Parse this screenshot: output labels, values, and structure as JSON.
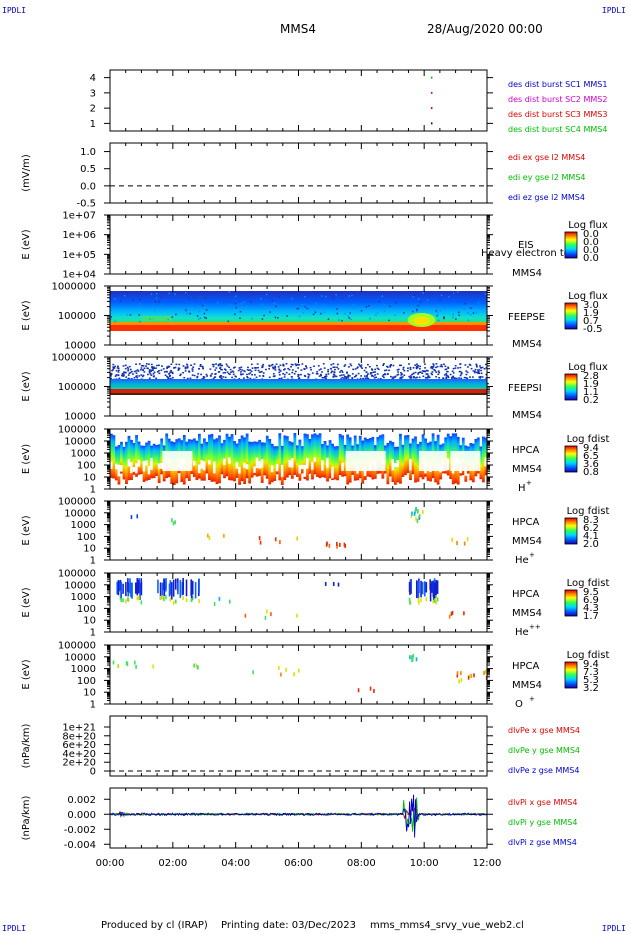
{
  "corner_tl": "IPDLI",
  "corner_tr": "IPDLI",
  "corner_bl": "IPDLI",
  "corner_br": "IPDLI",
  "spacecraft": "MMS4",
  "date": "28/Aug/2020 00:00",
  "footer": {
    "producer": "Produced by cl (IRAP)",
    "printing": "Printing date: 03/Dec/2023",
    "filename": "mms_mms4_srvy_vue_web2.cl"
  },
  "time_ticks": [
    "00:00",
    "02:00",
    "04:00",
    "06:00",
    "08:00",
    "10:00",
    "12:00"
  ],
  "panel_yticks": {
    "burst": [
      "4",
      "3",
      "2",
      "1"
    ],
    "edi": [
      "1.0",
      "0.5",
      "0.0",
      "-0.5"
    ],
    "eis": [
      "1e+07",
      "1e+06",
      "1e+05",
      "1e+04"
    ],
    "feeps": [
      "1000000",
      "100000",
      "10000"
    ],
    "hpca": [
      "100000",
      "10000",
      "1000",
      "100",
      "10",
      "1"
    ],
    "gradpe": [
      "1e+21",
      "8e+20",
      "6e+20",
      "4e+20",
      "2e+20",
      "0"
    ],
    "gradpi": [
      "0.002",
      "0.000",
      "-0.002",
      "-0.004"
    ]
  },
  "colors": {
    "blue": "#0000cc",
    "magenta": "#cc00cc",
    "red": "#dd0000",
    "green": "#00bb00"
  },
  "chart_data": [
    {
      "type": "scatter",
      "ylabel": "",
      "ylim": [
        0.5,
        4.5
      ],
      "series": [
        {
          "name": "des dist burst SC1 MMS1",
          "color": "#0000cc"
        },
        {
          "name": "des dist burst SC2 MMS2",
          "color": "#cc00cc"
        },
        {
          "name": "des dist burst SC3 MMS3",
          "color": "#dd0000"
        },
        {
          "name": "des dist burst SC4 MMS4",
          "color": "#00bb00"
        }
      ],
      "points": [
        {
          "x": "10:13",
          "y": 4,
          "series": "des dist burst SC4 MMS4"
        },
        {
          "x": "10:13",
          "y": 3,
          "series": "des dist burst SC2 MMS2"
        },
        {
          "x": "10:13",
          "y": 2,
          "series": "des dist burst SC3 MMS3"
        },
        {
          "x": "10:13",
          "y": 1,
          "series": "des dist burst SC1 MMS1"
        }
      ]
    },
    {
      "type": "line",
      "ylabel": "(mV/m)",
      "ylim": [
        -0.5,
        1.25
      ],
      "series": [
        {
          "name": "edi ex gse l2 MMS4",
          "color": "#dd0000",
          "values": []
        },
        {
          "name": "edi ey gse l2 MMS4",
          "color": "#00bb00",
          "values": []
        },
        {
          "name": "edi ez gse l2 MMS4",
          "color": "#0000cc",
          "values": []
        }
      ],
      "reference_line": 0.0
    },
    {
      "type": "heatmap",
      "ylabel": "E (eV)",
      "ylim": [
        10000,
        10000000
      ],
      "yscale": "log",
      "instrument": "EIS",
      "subtitle": "Heavy electron to",
      "spacecraft": "MMS4",
      "colorbar_title": "Log flux",
      "colorbar_ticks": [
        "0.0",
        "0.0",
        "0.0",
        "0.0"
      ]
    },
    {
      "type": "heatmap",
      "ylabel": "E (eV)",
      "ylim": [
        10000,
        1000000
      ],
      "yscale": "log",
      "instrument": "FEEPSE",
      "spacecraft": "MMS4",
      "colorbar_title": "Log flux",
      "colorbar_ticks": [
        "3.0",
        "1.9",
        "0.7",
        "-0.5"
      ]
    },
    {
      "type": "heatmap",
      "ylabel": "E (eV)",
      "ylim": [
        10000,
        1000000
      ],
      "yscale": "log",
      "instrument": "FEEPSI",
      "spacecraft": "MMS4",
      "colorbar_title": "Log flux",
      "colorbar_ticks": [
        "2.8",
        "1.9",
        "1.1",
        "0.2"
      ]
    },
    {
      "type": "heatmap",
      "ylabel": "E (eV)",
      "ylim": [
        1,
        100000
      ],
      "yscale": "log",
      "instrument": "HPCA",
      "spacecraft": "MMS4",
      "species": "H",
      "species_charge": "+",
      "colorbar_title": "Log fdist",
      "colorbar_ticks": [
        "9.4",
        "6.5",
        "3.6",
        "0.8"
      ]
    },
    {
      "type": "heatmap",
      "ylabel": "E (eV)",
      "ylim": [
        1,
        100000
      ],
      "yscale": "log",
      "instrument": "HPCA",
      "spacecraft": "MMS4",
      "species": "He",
      "species_charge": "+",
      "colorbar_title": "Log fdist",
      "colorbar_ticks": [
        "8.3",
        "6.2",
        "4.1",
        "2.0"
      ]
    },
    {
      "type": "heatmap",
      "ylabel": "E (eV)",
      "ylim": [
        1,
        100000
      ],
      "yscale": "log",
      "instrument": "HPCA",
      "spacecraft": "MMS4",
      "species": "He",
      "species_charge": "++",
      "colorbar_title": "Log fdist",
      "colorbar_ticks": [
        "9.5",
        "6.9",
        "4.3",
        "1.7"
      ]
    },
    {
      "type": "heatmap",
      "ylabel": "E (eV)",
      "ylim": [
        1,
        100000
      ],
      "yscale": "log",
      "instrument": "HPCA",
      "spacecraft": "MMS4",
      "species": "O",
      "species_charge": "+",
      "colorbar_title": "Log fdist",
      "colorbar_ticks": [
        "9.4",
        "7.3",
        "5.3",
        "3.2"
      ]
    },
    {
      "type": "line",
      "ylabel": "(nPa/km)",
      "ylim": [
        0,
        1e+21
      ],
      "series": [
        {
          "name": "dlvPe x gse MMS4",
          "color": "#dd0000",
          "values": []
        },
        {
          "name": "dlvPe y gse MMS4",
          "color": "#00bb00",
          "values": []
        },
        {
          "name": "dlvPe z gse MMS4",
          "color": "#0000cc",
          "values": []
        }
      ],
      "reference_line": 0
    },
    {
      "type": "line",
      "ylabel": "(nPa/km)",
      "ylim": [
        -0.0045,
        0.0035
      ],
      "series": [
        {
          "name": "dlvPi x gse MMS4",
          "color": "#dd0000",
          "values": []
        },
        {
          "name": "dlvPi y gse MMS4",
          "color": "#00bb00",
          "values": []
        },
        {
          "name": "dlvPi z gse MMS4",
          "color": "#0000cc",
          "values": []
        }
      ],
      "reference_line": 0.0
    }
  ]
}
